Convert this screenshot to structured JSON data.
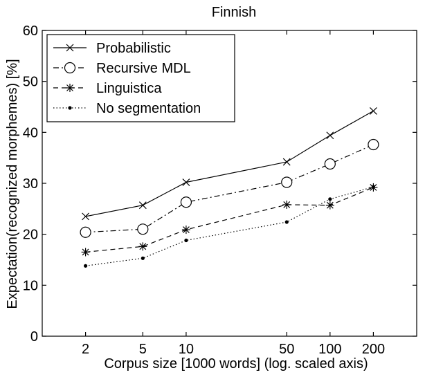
{
  "chart_data": {
    "type": "line",
    "title": "Finnish",
    "xlabel": "Corpus size [1000 words]  (log. scaled axis)",
    "ylabel": "Expectation(recognized morphemes) [%]",
    "x_scale": "log",
    "x": [
      2,
      5,
      10,
      50,
      100,
      200
    ],
    "xticks": [
      "2",
      "5",
      "10",
      "50",
      "100",
      "200"
    ],
    "xlim": [
      1,
      400
    ],
    "ylim": [
      0,
      60
    ],
    "yticks": [
      "0",
      "10",
      "20",
      "30",
      "40",
      "50",
      "60"
    ],
    "grid": false,
    "legend_position": "top-left",
    "series": [
      {
        "name": "Probabilistic",
        "marker": "x",
        "line": "solid",
        "values": [
          23.5,
          25.7,
          30.2,
          34.2,
          39.4,
          44.2
        ]
      },
      {
        "name": "Recursive MDL",
        "marker": "circle",
        "line": "dashdot",
        "values": [
          20.4,
          21.0,
          26.3,
          30.2,
          33.8,
          37.6
        ]
      },
      {
        "name": "Linguistica",
        "marker": "asterisk",
        "line": "dashed",
        "values": [
          16.5,
          17.6,
          20.9,
          25.8,
          25.7,
          29.2
        ]
      },
      {
        "name": "No segmentation",
        "marker": "dot",
        "line": "dotted",
        "values": [
          13.8,
          15.3,
          18.8,
          22.4,
          26.9,
          29.3
        ]
      }
    ]
  }
}
